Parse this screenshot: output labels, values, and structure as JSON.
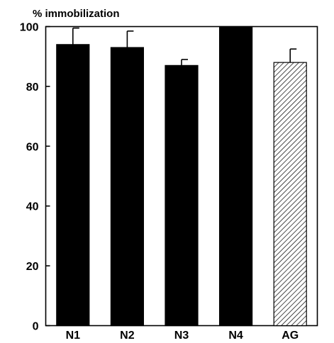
{
  "chart_data": {
    "type": "bar",
    "ylabel": "% immobilization",
    "categories": [
      "N1",
      "N2",
      "N3",
      "N4",
      "AG"
    ],
    "values": [
      94,
      93,
      87,
      100,
      88
    ],
    "error_upper": [
      99.5,
      98.5,
      89,
      100,
      92.5
    ],
    "ylim": [
      0,
      100
    ],
    "yticks": [
      0,
      20,
      40,
      60,
      80,
      100
    ],
    "bar_styles": [
      "solid",
      "solid",
      "solid",
      "solid",
      "hatched"
    ],
    "grid": false,
    "legend": "none"
  }
}
